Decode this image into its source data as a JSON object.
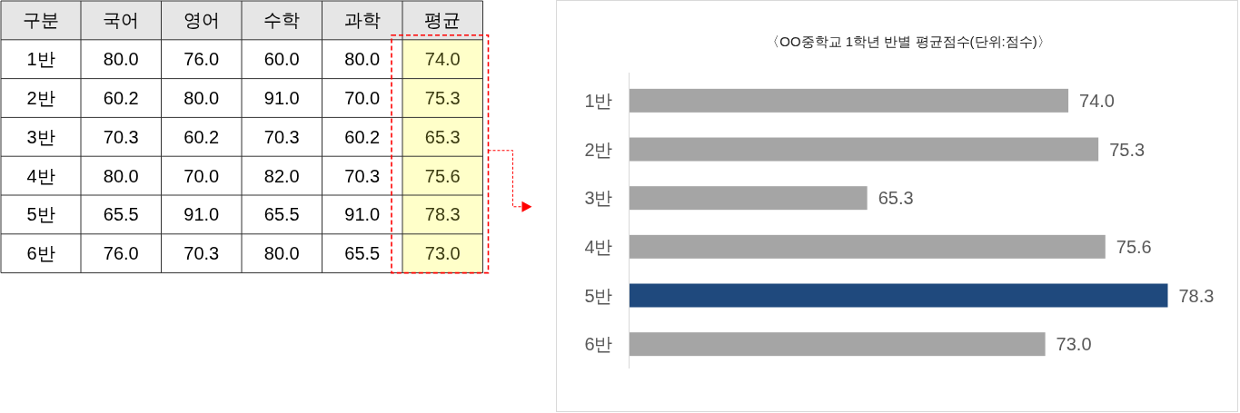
{
  "chart_data": [
    {
      "type": "heatmap",
      "ylabel": "구분",
      "categories": [
        "국어",
        "영어",
        "수학",
        "과학",
        "평균"
      ],
      "y_categories": [
        "1반",
        "2반",
        "3반",
        "4반",
        "5반",
        "6반"
      ],
      "cells": [
        [
          80.0,
          76.0,
          60.0,
          80.0,
          74.0
        ],
        [
          60.2,
          80.0,
          91.0,
          70.0,
          75.3
        ],
        [
          70.3,
          60.2,
          70.3,
          60.2,
          65.3
        ],
        [
          80.0,
          70.0,
          82.0,
          70.3,
          75.6
        ],
        [
          65.5,
          91.0,
          65.5,
          91.0,
          78.3
        ],
        [
          76.0,
          70.3,
          80.0,
          65.5,
          73.0
        ]
      ],
      "cell_labels": [
        [
          "80.0",
          "76.0",
          "60.0",
          "80.0",
          "74.0"
        ],
        [
          "60.2",
          "80.0",
          "91.0",
          "70.0",
          "75.3"
        ],
        [
          "70.3",
          "60.2",
          "70.3",
          "60.2",
          "65.3"
        ],
        [
          "80.0",
          "70.0",
          "82.0",
          "70.3",
          "75.6"
        ],
        [
          "65.5",
          "91.0",
          "65.5",
          "91.0",
          "78.3"
        ],
        [
          "76.0",
          "70.3",
          "80.0",
          "65.5",
          "73.0"
        ]
      ],
      "bands": [
        {
          "axis": "x",
          "from": "평균",
          "to": "평균",
          "color": "#ffffc9"
        }
      ]
    },
    {
      "type": "bar",
      "orientation": "horizontal",
      "title": "〈OO중학교 1학년 반별 평균점수(단위:점수)〉",
      "categories": [
        "1반",
        "2반",
        "3반",
        "4반",
        "5반",
        "6반"
      ],
      "values": [
        74.0,
        75.3,
        65.3,
        75.6,
        78.3,
        73.0
      ],
      "colors": [
        "#a5a5a5",
        "#a5a5a5",
        "#a5a5a5",
        "#a5a5a5",
        "#1f497d",
        "#a5a5a5"
      ],
      "value_labels": [
        "74.0",
        "75.3",
        "65.3",
        "75.6",
        "78.3",
        "73.0"
      ],
      "xlim": [
        55,
        78.3
      ],
      "tick_labels": "y"
    }
  ]
}
